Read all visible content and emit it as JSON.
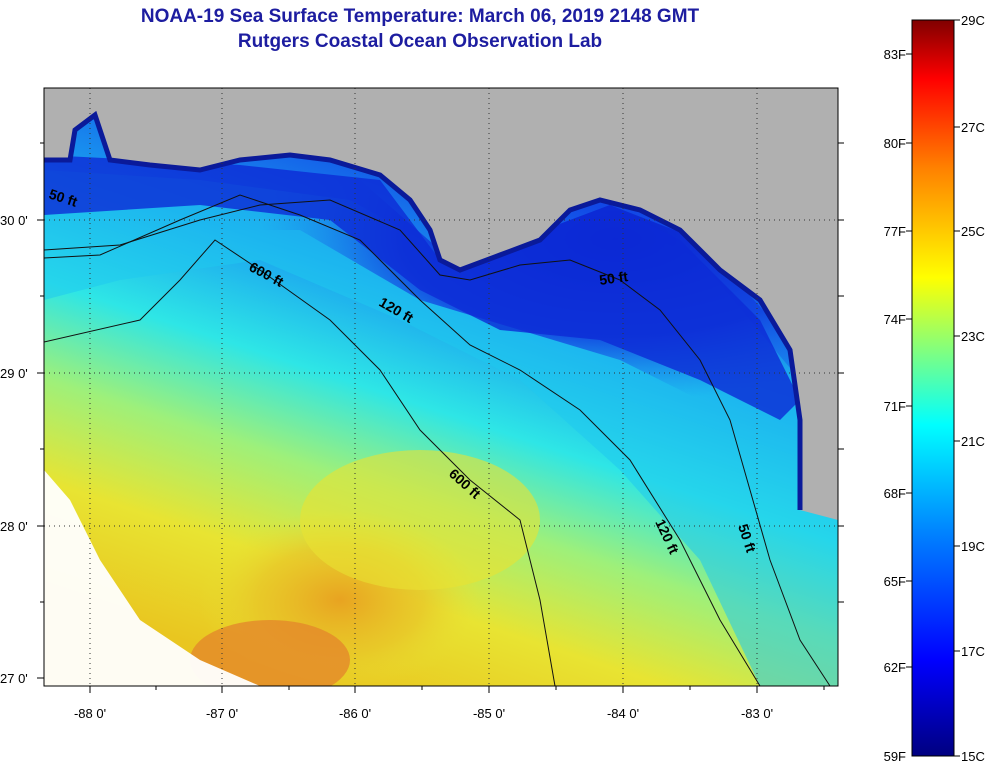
{
  "title": "NOAA-19 Sea Surface Temperature:  March 06, 2019 2148 GMT",
  "subtitle": "Rutgers Coastal Ocean Observation Lab",
  "map": {
    "lon_labels": [
      "-88 0'",
      "-87 0'",
      "-86 0'",
      "-85 0'",
      "-84 0'",
      "-83 0'"
    ],
    "lat_labels": [
      "30 0'",
      "29 0'",
      "28 0'",
      "27 0'"
    ],
    "contour_labels": [
      "50 ft",
      "600 ft",
      "120 ft",
      "50 ft",
      "600 ft",
      "120 ft",
      "50 ft"
    ],
    "colors": {
      "land": "#b0b0b0",
      "cold": "#0a2ed8",
      "cool": "#1fd0ec",
      "warm": "#e6e02a",
      "hot": "#e58a1a"
    }
  },
  "colorbar": {
    "celsius": [
      "29C",
      "27C",
      "25C",
      "23C",
      "21C",
      "19C",
      "17C",
      "15C"
    ],
    "fahrenheit": [
      "83F",
      "80F",
      "77F",
      "74F",
      "71F",
      "68F",
      "65F",
      "62F",
      "59F"
    ]
  }
}
